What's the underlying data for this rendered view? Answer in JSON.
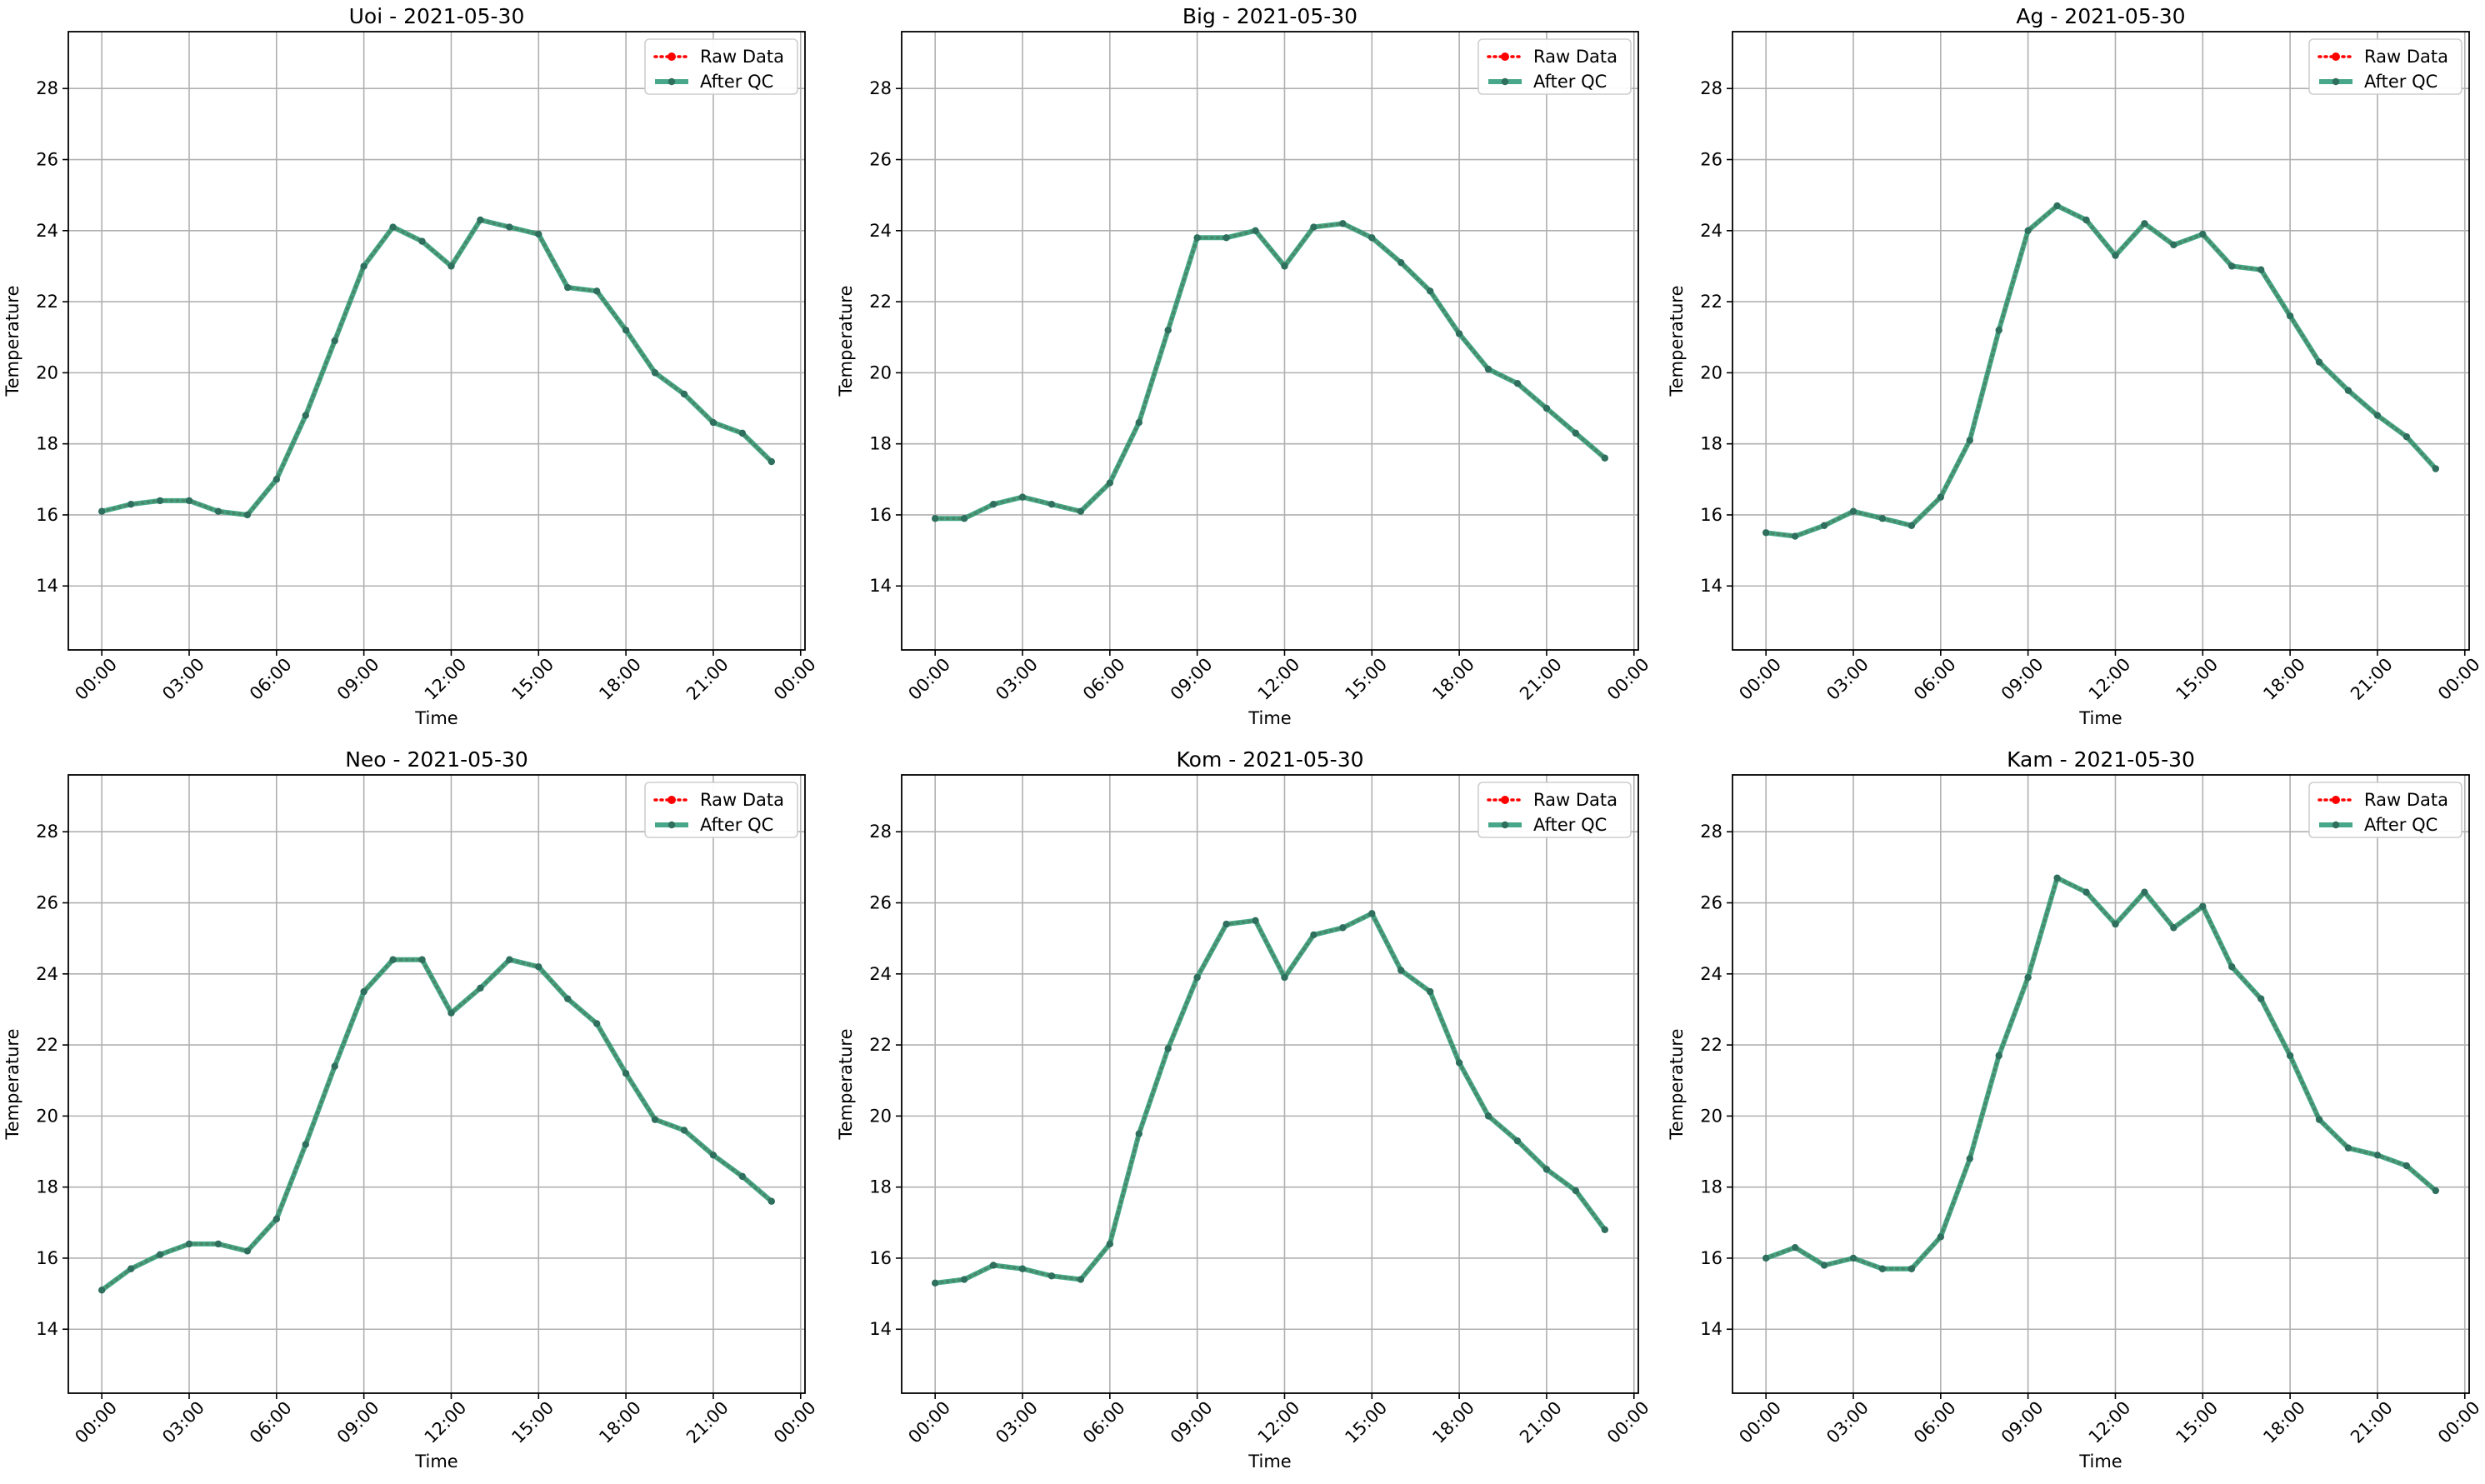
{
  "figure": {
    "shared_legend": [
      "Raw Data",
      "After QC"
    ]
  },
  "colors": {
    "raw": "#ff0000",
    "qc": "#2e9c78",
    "marker": "#2f6f5e",
    "grid": "#b0b0b0",
    "axis": "#000000"
  },
  "chart_data": [
    {
      "type": "line",
      "title": "Uoi - 2021-05-30",
      "xlabel": "Time",
      "ylabel": "Temperature",
      "xlim_hours": [
        -1.15,
        24.15
      ],
      "ylim": [
        12.2,
        29.6
      ],
      "x_ticks": [
        "00:00",
        "03:00",
        "06:00",
        "09:00",
        "12:00",
        "15:00",
        "18:00",
        "21:00",
        "00:00"
      ],
      "y_ticks": [
        "14",
        "16",
        "18",
        "20",
        "22",
        "24",
        "26",
        "28"
      ],
      "grid": true,
      "legend_position": "top-right",
      "x_hours": [
        0,
        1,
        2,
        3,
        4,
        5,
        6,
        7,
        8,
        9,
        10,
        11,
        12,
        13,
        14,
        15,
        16,
        17,
        18,
        19,
        20,
        21,
        22,
        23
      ],
      "series": [
        {
          "name": "Raw Data",
          "style": "dotted",
          "values": [
            16.1,
            16.3,
            16.4,
            16.4,
            16.1,
            16.0,
            17.0,
            18.8,
            20.9,
            23.0,
            24.1,
            23.7,
            23.0,
            24.3,
            24.1,
            23.9,
            22.4,
            22.3,
            21.2,
            20.0,
            19.4,
            18.6,
            18.3,
            17.5
          ]
        },
        {
          "name": "After QC",
          "style": "solid",
          "values": [
            16.1,
            16.3,
            16.4,
            16.4,
            16.1,
            16.0,
            17.0,
            18.8,
            20.9,
            23.0,
            24.1,
            23.7,
            23.0,
            24.3,
            24.1,
            23.9,
            22.4,
            22.3,
            21.2,
            20.0,
            19.4,
            18.6,
            18.3,
            17.5
          ]
        }
      ]
    },
    {
      "type": "line",
      "title": "Big - 2021-05-30",
      "xlabel": "Time",
      "ylabel": "Temperature",
      "xlim_hours": [
        -1.15,
        24.15
      ],
      "ylim": [
        12.2,
        29.6
      ],
      "x_ticks": [
        "00:00",
        "03:00",
        "06:00",
        "09:00",
        "12:00",
        "15:00",
        "18:00",
        "21:00",
        "00:00"
      ],
      "y_ticks": [
        "14",
        "16",
        "18",
        "20",
        "22",
        "24",
        "26",
        "28"
      ],
      "grid": true,
      "legend_position": "top-right",
      "x_hours": [
        0,
        1,
        2,
        3,
        4,
        5,
        6,
        7,
        8,
        9,
        10,
        11,
        12,
        13,
        14,
        15,
        16,
        17,
        18,
        19,
        20,
        21,
        22,
        23
      ],
      "series": [
        {
          "name": "Raw Data",
          "style": "dotted",
          "values": [
            15.9,
            15.9,
            16.3,
            16.5,
            16.3,
            16.1,
            16.9,
            18.6,
            21.2,
            23.8,
            23.8,
            24.0,
            23.0,
            24.1,
            24.2,
            23.8,
            23.1,
            22.3,
            21.1,
            20.1,
            19.7,
            19.0,
            18.3,
            17.6
          ]
        },
        {
          "name": "After QC",
          "style": "solid",
          "values": [
            15.9,
            15.9,
            16.3,
            16.5,
            16.3,
            16.1,
            16.9,
            18.6,
            21.2,
            23.8,
            23.8,
            24.0,
            23.0,
            24.1,
            24.2,
            23.8,
            23.1,
            22.3,
            21.1,
            20.1,
            19.7,
            19.0,
            18.3,
            17.6
          ]
        }
      ]
    },
    {
      "type": "line",
      "title": "Ag - 2021-05-30",
      "xlabel": "Time",
      "ylabel": "Temperature",
      "xlim_hours": [
        -1.15,
        24.15
      ],
      "ylim": [
        12.2,
        29.6
      ],
      "x_ticks": [
        "00:00",
        "03:00",
        "06:00",
        "09:00",
        "12:00",
        "15:00",
        "18:00",
        "21:00",
        "00:00"
      ],
      "y_ticks": [
        "14",
        "16",
        "18",
        "20",
        "22",
        "24",
        "26",
        "28"
      ],
      "grid": true,
      "legend_position": "top-right",
      "x_hours": [
        0,
        1,
        2,
        3,
        4,
        5,
        6,
        7,
        8,
        9,
        10,
        11,
        12,
        13,
        14,
        15,
        16,
        17,
        18,
        19,
        20,
        21,
        22,
        23
      ],
      "series": [
        {
          "name": "Raw Data",
          "style": "dotted",
          "values": [
            15.5,
            15.4,
            15.7,
            16.1,
            15.9,
            15.7,
            16.5,
            18.1,
            21.2,
            24.0,
            24.7,
            24.3,
            23.3,
            24.2,
            23.6,
            23.9,
            23.0,
            22.9,
            21.6,
            20.3,
            19.5,
            18.8,
            18.2,
            17.3
          ]
        },
        {
          "name": "After QC",
          "style": "solid",
          "values": [
            15.5,
            15.4,
            15.7,
            16.1,
            15.9,
            15.7,
            16.5,
            18.1,
            21.2,
            24.0,
            24.7,
            24.3,
            23.3,
            24.2,
            23.6,
            23.9,
            23.0,
            22.9,
            21.6,
            20.3,
            19.5,
            18.8,
            18.2,
            17.3
          ]
        }
      ]
    },
    {
      "type": "line",
      "title": "Neo - 2021-05-30",
      "xlabel": "Time",
      "ylabel": "Temperature",
      "xlim_hours": [
        -1.15,
        24.15
      ],
      "ylim": [
        12.2,
        29.6
      ],
      "x_ticks": [
        "00:00",
        "03:00",
        "06:00",
        "09:00",
        "12:00",
        "15:00",
        "18:00",
        "21:00",
        "00:00"
      ],
      "y_ticks": [
        "14",
        "16",
        "18",
        "20",
        "22",
        "24",
        "26",
        "28"
      ],
      "grid": true,
      "legend_position": "top-right",
      "x_hours": [
        0,
        1,
        2,
        3,
        4,
        5,
        6,
        7,
        8,
        9,
        10,
        11,
        12,
        13,
        14,
        15,
        16,
        17,
        18,
        19,
        20,
        21,
        22,
        23
      ],
      "series": [
        {
          "name": "Raw Data",
          "style": "dotted",
          "values": [
            15.1,
            15.7,
            16.1,
            16.4,
            16.4,
            16.2,
            17.1,
            19.2,
            21.4,
            23.5,
            24.4,
            24.4,
            22.9,
            23.6,
            24.4,
            24.2,
            23.3,
            22.6,
            21.2,
            19.9,
            19.6,
            18.9,
            18.3,
            17.6
          ]
        },
        {
          "name": "After QC",
          "style": "solid",
          "values": [
            15.1,
            15.7,
            16.1,
            16.4,
            16.4,
            16.2,
            17.1,
            19.2,
            21.4,
            23.5,
            24.4,
            24.4,
            22.9,
            23.6,
            24.4,
            24.2,
            23.3,
            22.6,
            21.2,
            19.9,
            19.6,
            18.9,
            18.3,
            17.6
          ]
        }
      ]
    },
    {
      "type": "line",
      "title": "Kom - 2021-05-30",
      "xlabel": "Time",
      "ylabel": "Temperature",
      "xlim_hours": [
        -1.15,
        24.15
      ],
      "ylim": [
        12.2,
        29.6
      ],
      "x_ticks": [
        "00:00",
        "03:00",
        "06:00",
        "09:00",
        "12:00",
        "15:00",
        "18:00",
        "21:00",
        "00:00"
      ],
      "y_ticks": [
        "14",
        "16",
        "18",
        "20",
        "22",
        "24",
        "26",
        "28"
      ],
      "grid": true,
      "legend_position": "top-right",
      "x_hours": [
        0,
        1,
        2,
        3,
        4,
        5,
        6,
        7,
        8,
        9,
        10,
        11,
        12,
        13,
        14,
        15,
        16,
        17,
        18,
        19,
        20,
        21,
        22,
        23
      ],
      "series": [
        {
          "name": "Raw Data",
          "style": "dotted",
          "values": [
            15.3,
            15.4,
            15.8,
            15.7,
            15.5,
            15.4,
            16.4,
            19.5,
            21.9,
            23.9,
            25.4,
            25.5,
            23.9,
            25.1,
            25.3,
            25.7,
            24.1,
            23.5,
            21.5,
            20.0,
            19.3,
            18.5,
            17.9,
            16.8
          ]
        },
        {
          "name": "After QC",
          "style": "solid",
          "values": [
            15.3,
            15.4,
            15.8,
            15.7,
            15.5,
            15.4,
            16.4,
            19.5,
            21.9,
            23.9,
            25.4,
            25.5,
            23.9,
            25.1,
            25.3,
            25.7,
            24.1,
            23.5,
            21.5,
            20.0,
            19.3,
            18.5,
            17.9,
            16.8
          ]
        }
      ]
    },
    {
      "type": "line",
      "title": "Kam - 2021-05-30",
      "xlabel": "Time",
      "ylabel": "Temperature",
      "xlim_hours": [
        -1.15,
        24.15
      ],
      "ylim": [
        12.2,
        29.6
      ],
      "x_ticks": [
        "00:00",
        "03:00",
        "06:00",
        "09:00",
        "12:00",
        "15:00",
        "18:00",
        "21:00",
        "00:00"
      ],
      "y_ticks": [
        "14",
        "16",
        "18",
        "20",
        "22",
        "24",
        "26",
        "28"
      ],
      "grid": true,
      "legend_position": "top-right",
      "x_hours": [
        0,
        1,
        2,
        3,
        4,
        5,
        6,
        7,
        8,
        9,
        10,
        11,
        12,
        13,
        14,
        15,
        16,
        17,
        18,
        19,
        20,
        21,
        22,
        23
      ],
      "series": [
        {
          "name": "Raw Data",
          "style": "dotted",
          "values": [
            16.0,
            16.3,
            15.8,
            16.0,
            15.7,
            15.7,
            16.6,
            18.8,
            21.7,
            23.9,
            26.7,
            26.3,
            25.4,
            26.3,
            25.3,
            25.9,
            24.2,
            23.3,
            21.7,
            19.9,
            19.1,
            18.9,
            18.6,
            17.9
          ]
        },
        {
          "name": "After QC",
          "style": "solid",
          "values": [
            16.0,
            16.3,
            15.8,
            16.0,
            15.7,
            15.7,
            16.6,
            18.8,
            21.7,
            23.9,
            26.7,
            26.3,
            25.4,
            26.3,
            25.3,
            25.9,
            24.2,
            23.3,
            21.7,
            19.9,
            19.1,
            18.9,
            18.6,
            17.9
          ]
        }
      ]
    }
  ]
}
